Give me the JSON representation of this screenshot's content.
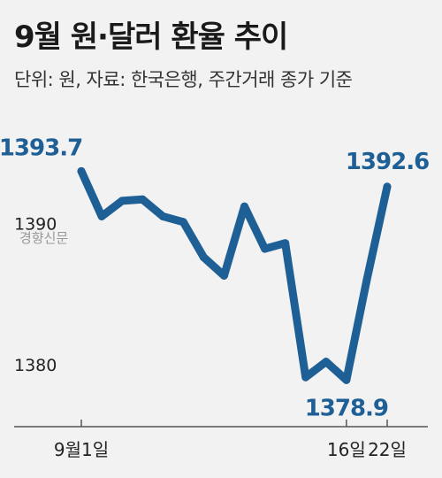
{
  "header": {
    "title": "9월 원·달러 환율 추이",
    "subtitle": "단위: 원, 자료: 한국은행, 주간거래 종가 기준"
  },
  "watermark": "경향신문",
  "colors": {
    "line": "#1e5f96",
    "label": "#1e5f96",
    "axis": "#555555",
    "background": "#f2f2f2"
  },
  "chart_data": {
    "type": "line",
    "title": "9월 원·달러 환율 추이",
    "subtitle": "단위: 원, 자료: 한국은행, 주간거래 종가 기준",
    "x": [
      1,
      2,
      3,
      4,
      5,
      6,
      7,
      8,
      9,
      10,
      11,
      12,
      13,
      14,
      15,
      16
    ],
    "x_labels": [
      "9월1일",
      "",
      "",
      "",
      "",
      "",
      "",
      "",
      "",
      "",
      "",
      "",
      "",
      "16일",
      "",
      "22일"
    ],
    "values": [
      1393.7,
      1390.5,
      1391.6,
      1391.7,
      1390.5,
      1390.1,
      1387.6,
      1386.3,
      1391.2,
      1388.2,
      1388.6,
      1379.1,
      1380.2,
      1378.9,
      1386.0,
      1392.6
    ],
    "highlight_index": [
      0,
      13,
      15
    ],
    "labels": {
      "0": "1393.7",
      "13": "1378.9",
      "15": "1392.6"
    },
    "y_ticks": [
      1380,
      1390
    ],
    "ylim": [
      1375.6,
      1397.8
    ],
    "grid": false,
    "legend": "none"
  }
}
